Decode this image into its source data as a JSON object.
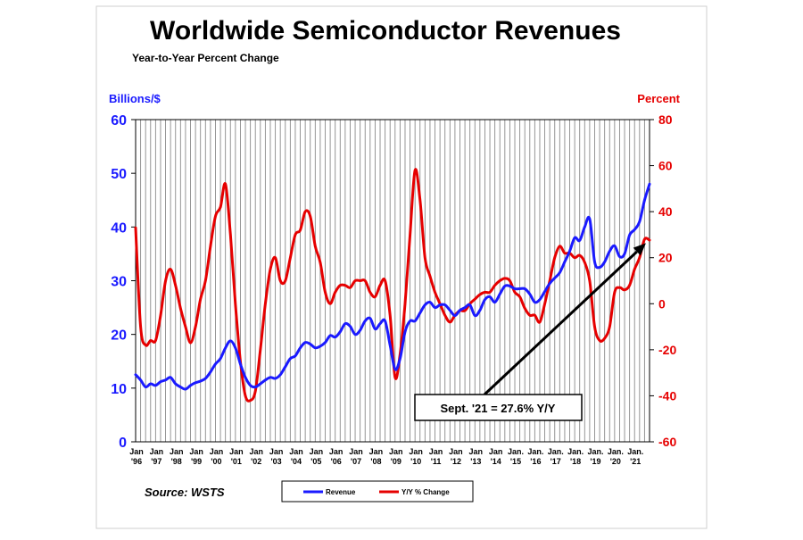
{
  "chart_data": {
    "type": "line",
    "title": "Worldwide Semiconductor Revenues",
    "subtitle": "Year-to-Year Percent Change",
    "ylabel_left": "Billions/$",
    "ylabel_right": "Percent",
    "ylim_left": [
      0,
      60
    ],
    "ylim_right": [
      -60,
      80
    ],
    "yticks_left": [
      "0",
      "10",
      "20",
      "30",
      "40",
      "50",
      "60"
    ],
    "yticks_right": [
      "-60",
      "-40",
      "-20",
      "0",
      "20",
      "40",
      "60",
      "80"
    ],
    "x_range": [
      1996,
      2021.75
    ],
    "x_ticks": [
      {
        "line1": "Jan",
        "line2": "'96"
      },
      {
        "line1": "Jan",
        "line2": "'97"
      },
      {
        "line1": "Jan",
        "line2": "'98"
      },
      {
        "line1": "Jan",
        "line2": "'99"
      },
      {
        "line1": "Jan",
        "line2": "'00"
      },
      {
        "line1": "Jan",
        "line2": "'01"
      },
      {
        "line1": "Jan",
        "line2": "'02"
      },
      {
        "line1": "Jan",
        "line2": "'03"
      },
      {
        "line1": "Jan",
        "line2": "'04"
      },
      {
        "line1": "Jan",
        "line2": "'05"
      },
      {
        "line1": "Jan",
        "line2": "'06"
      },
      {
        "line1": "Jan",
        "line2": "'07"
      },
      {
        "line1": "Jan",
        "line2": "'08"
      },
      {
        "line1": "Jan",
        "line2": "'09"
      },
      {
        "line1": "Jan",
        "line2": "'10"
      },
      {
        "line1": "Jan",
        "line2": "'11"
      },
      {
        "line1": "Jan",
        "line2": "'12"
      },
      {
        "line1": "Jan",
        "line2": "'13"
      },
      {
        "line1": "Jan",
        "line2": "'14"
      },
      {
        "line1": "Jan.",
        "line2": "'15"
      },
      {
        "line1": "Jan.",
        "line2": "'16"
      },
      {
        "line1": "Jan.",
        "line2": "'17"
      },
      {
        "line1": "Jan.",
        "line2": "'18"
      },
      {
        "line1": "Jan.",
        "line2": "'19"
      },
      {
        "line1": "Jan.",
        "line2": "'20"
      },
      {
        "line1": "Jan.",
        "line2": "'21"
      }
    ],
    "series": [
      {
        "name": "Revenue",
        "axis": "left",
        "color": "#1a1aff",
        "x": [
          1996.0,
          1996.25,
          1996.5,
          1996.75,
          1997.0,
          1997.25,
          1997.5,
          1997.75,
          1998.0,
          1998.25,
          1998.5,
          1998.75,
          1999.0,
          1999.25,
          1999.5,
          1999.75,
          2000.0,
          2000.25,
          2000.5,
          2000.75,
          2001.0,
          2001.25,
          2001.5,
          2001.75,
          2002.0,
          2002.25,
          2002.5,
          2002.75,
          2003.0,
          2003.25,
          2003.5,
          2003.75,
          2004.0,
          2004.25,
          2004.5,
          2004.75,
          2005.0,
          2005.25,
          2005.5,
          2005.75,
          2006.0,
          2006.25,
          2006.5,
          2006.75,
          2007.0,
          2007.25,
          2007.5,
          2007.75,
          2008.0,
          2008.25,
          2008.5,
          2008.75,
          2009.0,
          2009.25,
          2009.5,
          2009.75,
          2010.0,
          2010.25,
          2010.5,
          2010.75,
          2011.0,
          2011.25,
          2011.5,
          2011.75,
          2012.0,
          2012.25,
          2012.5,
          2012.75,
          2013.0,
          2013.25,
          2013.5,
          2013.75,
          2014.0,
          2014.25,
          2014.5,
          2014.75,
          2015.0,
          2015.25,
          2015.5,
          2015.75,
          2016.0,
          2016.25,
          2016.5,
          2016.75,
          2017.0,
          2017.25,
          2017.5,
          2017.75,
          2018.0,
          2018.25,
          2018.5,
          2018.75,
          2019.0,
          2019.25,
          2019.5,
          2019.75,
          2020.0,
          2020.25,
          2020.5,
          2020.75,
          2021.0,
          2021.25,
          2021.5,
          2021.75
        ],
        "values": [
          12.5,
          11.5,
          10.2,
          10.8,
          10.5,
          11.2,
          11.5,
          12.0,
          10.8,
          10.2,
          9.8,
          10.5,
          11.0,
          11.3,
          11.8,
          13.0,
          14.5,
          15.5,
          17.5,
          18.8,
          17.5,
          14.5,
          12.0,
          10.5,
          10.2,
          10.8,
          11.5,
          12.0,
          11.8,
          12.5,
          14.0,
          15.5,
          16.0,
          17.5,
          18.5,
          18.2,
          17.5,
          17.8,
          18.5,
          19.8,
          19.5,
          20.5,
          22.0,
          21.5,
          20.0,
          20.8,
          22.5,
          23.0,
          21.0,
          22.0,
          22.5,
          18.0,
          13.5,
          15.5,
          20.5,
          22.5,
          22.5,
          24.0,
          25.5,
          26.0,
          25.0,
          25.5,
          25.5,
          24.5,
          23.5,
          24.5,
          25.0,
          25.5,
          23.5,
          24.5,
          26.5,
          27.0,
          26.0,
          27.5,
          29.0,
          29.0,
          28.5,
          28.5,
          28.5,
          27.5,
          26.0,
          26.5,
          28.0,
          29.5,
          30.5,
          31.5,
          33.5,
          35.5,
          38.0,
          37.5,
          40.0,
          41.5,
          33.5,
          32.5,
          33.5,
          35.5,
          36.5,
          34.5,
          35.0,
          38.5,
          39.5,
          41.0,
          45.0,
          48.0
        ]
      },
      {
        "name": "Y/Y % Change",
        "axis": "right",
        "color": "#e60000",
        "x": [
          1996.0,
          1996.25,
          1996.5,
          1996.75,
          1997.0,
          1997.25,
          1997.5,
          1997.75,
          1998.0,
          1998.25,
          1998.5,
          1998.75,
          1999.0,
          1999.25,
          1999.5,
          1999.75,
          2000.0,
          2000.25,
          2000.5,
          2000.75,
          2001.0,
          2001.25,
          2001.5,
          2001.75,
          2002.0,
          2002.25,
          2002.5,
          2002.75,
          2003.0,
          2003.25,
          2003.5,
          2003.75,
          2004.0,
          2004.25,
          2004.5,
          2004.75,
          2005.0,
          2005.25,
          2005.5,
          2005.75,
          2006.0,
          2006.25,
          2006.5,
          2006.75,
          2007.0,
          2007.25,
          2007.5,
          2007.75,
          2008.0,
          2008.25,
          2008.5,
          2008.75,
          2009.0,
          2009.25,
          2009.5,
          2009.75,
          2010.0,
          2010.25,
          2010.5,
          2010.75,
          2011.0,
          2011.25,
          2011.5,
          2011.75,
          2012.0,
          2012.25,
          2012.5,
          2012.75,
          2013.0,
          2013.25,
          2013.5,
          2013.75,
          2014.0,
          2014.25,
          2014.5,
          2014.75,
          2015.0,
          2015.25,
          2015.5,
          2015.75,
          2016.0,
          2016.25,
          2016.5,
          2016.75,
          2017.0,
          2017.25,
          2017.5,
          2017.75,
          2018.0,
          2018.25,
          2018.5,
          2018.75,
          2019.0,
          2019.25,
          2019.5,
          2019.75,
          2020.0,
          2020.25,
          2020.5,
          2020.75,
          2021.0,
          2021.25,
          2021.5,
          2021.75
        ],
        "values": [
          33,
          -10,
          -18,
          -16,
          -16,
          -5,
          10,
          15,
          8,
          -2,
          -10,
          -17,
          -10,
          2,
          10,
          25,
          38,
          42,
          52,
          30,
          0,
          -25,
          -40,
          -42,
          -38,
          -20,
          0,
          15,
          20,
          10,
          10,
          20,
          30,
          32,
          40,
          38,
          25,
          18,
          5,
          0,
          5,
          8,
          8,
          7,
          10,
          10,
          10,
          5,
          3,
          8,
          10,
          -5,
          -32,
          -22,
          0,
          30,
          58,
          45,
          20,
          12,
          5,
          0,
          -5,
          -8,
          -5,
          -3,
          -3,
          0,
          2,
          4,
          5,
          5,
          8,
          10,
          11,
          10,
          5,
          3,
          -2,
          -5,
          -5,
          -8,
          0,
          10,
          20,
          25,
          22,
          22,
          20,
          21,
          18,
          10,
          -10,
          -16,
          -15,
          -10,
          5,
          7,
          6,
          8,
          15,
          20,
          28,
          27.6
        ]
      }
    ],
    "annotation": {
      "text": "Sept. '21 = 27.6% Y/Y",
      "target_x": 2021.75,
      "target_y_left": 37
    },
    "source": "Source: WSTS",
    "legend": {
      "revenue_label": "Revenue",
      "yoy_label": "Y/Y % Change",
      "position": "bottom"
    }
  }
}
